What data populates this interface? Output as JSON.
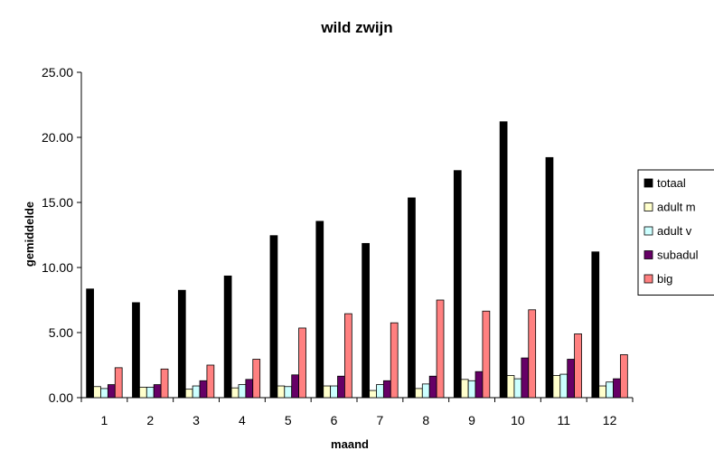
{
  "chart_data": {
    "type": "bar",
    "title": "wild zwijn",
    "xlabel": "maand",
    "ylabel": "gemiddelde",
    "categories": [
      "1",
      "2",
      "3",
      "4",
      "5",
      "6",
      "7",
      "8",
      "9",
      "10",
      "11",
      "12"
    ],
    "ylim": [
      0,
      25
    ],
    "yticks": [
      "0.00",
      "5.00",
      "10.00",
      "15.00",
      "20.00",
      "25.00"
    ],
    "grid": false,
    "legend_position": "right",
    "series": [
      {
        "name": "totaal",
        "color": "#000000",
        "values": [
          8.35,
          7.3,
          8.25,
          9.35,
          12.45,
          13.55,
          11.85,
          15.35,
          17.45,
          21.2,
          18.45,
          11.2
        ]
      },
      {
        "name": "adult m",
        "color": "#FFFFCC",
        "values": [
          0.85,
          0.8,
          0.65,
          0.75,
          0.9,
          0.9,
          0.55,
          0.7,
          1.4,
          1.7,
          1.7,
          0.9
        ]
      },
      {
        "name": "adult v",
        "color": "#CCFFFF",
        "values": [
          0.7,
          0.8,
          0.9,
          1.0,
          0.85,
          0.9,
          1.0,
          1.05,
          1.3,
          1.45,
          1.8,
          1.2
        ]
      },
      {
        "name": "subadult",
        "color": "#660066",
        "values": [
          1.0,
          1.0,
          1.3,
          1.4,
          1.75,
          1.65,
          1.3,
          1.65,
          2.0,
          3.05,
          2.95,
          1.45
        ]
      },
      {
        "name": "big",
        "color": "#FF8080",
        "values": [
          2.3,
          2.2,
          2.5,
          2.95,
          5.35,
          6.45,
          5.75,
          7.5,
          6.65,
          6.75,
          4.9,
          3.3
        ]
      }
    ],
    "legend_labels": [
      "totaal",
      "adult m",
      "adult v",
      "subadul",
      "big"
    ]
  }
}
